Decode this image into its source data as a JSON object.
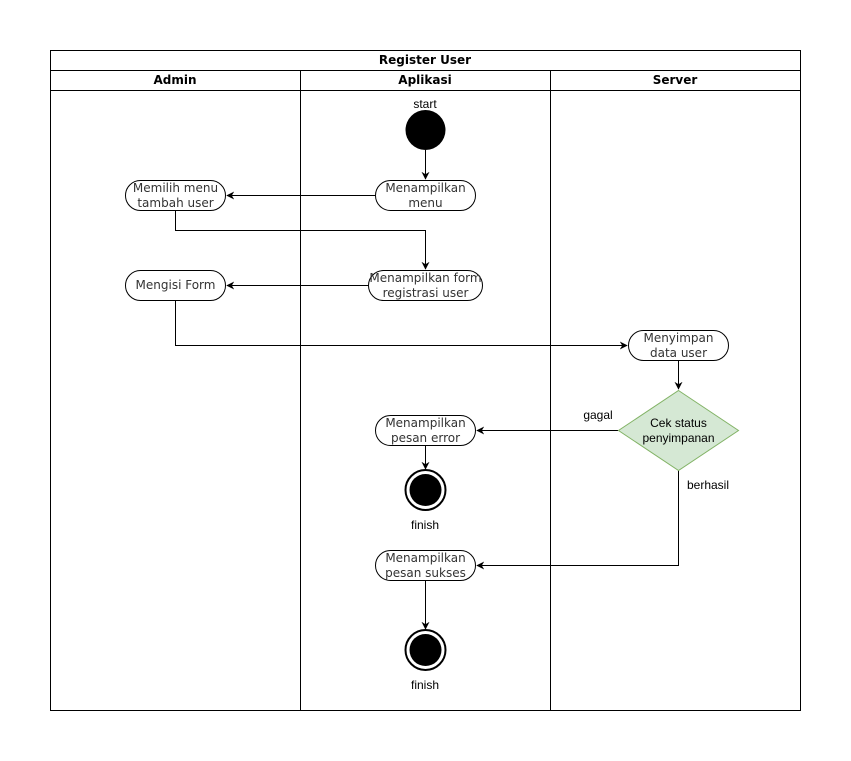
{
  "title": "Register User",
  "lanes": [
    {
      "name": "Admin"
    },
    {
      "name": "Aplikasi"
    },
    {
      "name": "Server"
    }
  ],
  "nodes": {
    "start": {
      "label": "start"
    },
    "menampilkan_menu": {
      "line1": "Menampilkan",
      "line2": "menu"
    },
    "memilih_menu": {
      "line1": "Memilih menu",
      "line2": "tambah user"
    },
    "menampilkan_form": {
      "line1": "Menampilkan form",
      "line2": "registrasi user"
    },
    "mengisi_form": {
      "line1": "Mengisi Form"
    },
    "menyimpan": {
      "line1": "Menyimpan",
      "line2": "data user"
    },
    "cek_status": {
      "line1": "Cek status",
      "line2": "penyimpanan"
    },
    "pesan_error": {
      "line1": "Menampilkan",
      "line2": "pesan error"
    },
    "pesan_sukses": {
      "line1": "Menampilkan",
      "line2": "pesan sukses"
    },
    "finish_1": {
      "label": "finish"
    },
    "finish_2": {
      "label": "finish"
    }
  },
  "edge_labels": {
    "gagal": "gagal",
    "berhasil": "berhasil"
  },
  "colors": {
    "line": "#000000",
    "decision_fill": "#d5e8d4",
    "decision_stroke": "#82b366",
    "node_fill": "#ffffff",
    "start_fill": "#000000"
  }
}
